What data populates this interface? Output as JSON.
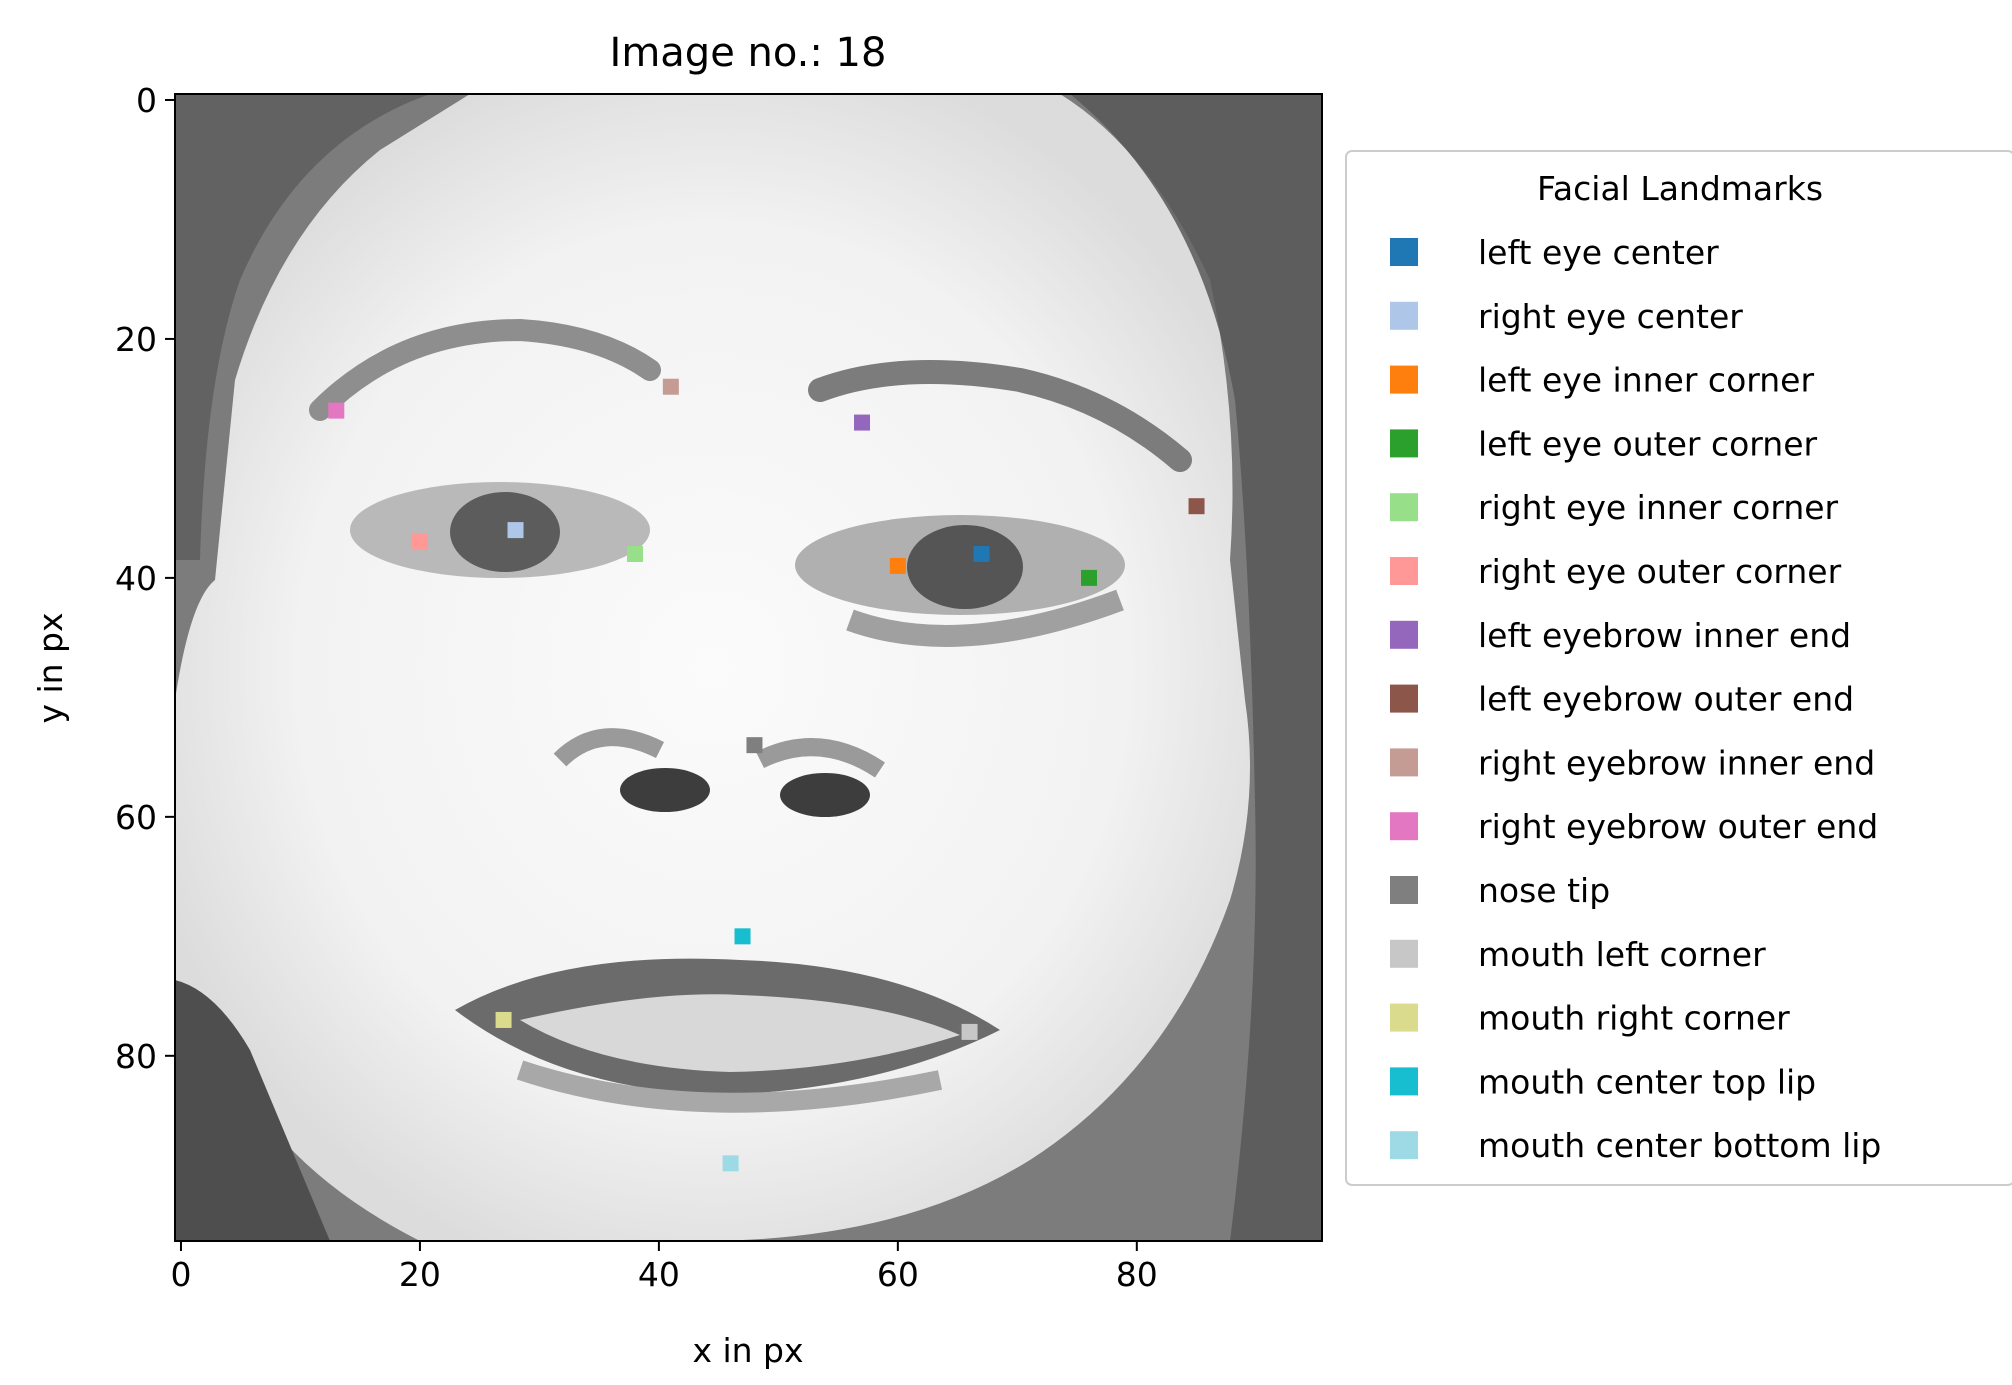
{
  "chart_data": {
    "type": "scatter",
    "title": "Image no.: 18",
    "xlabel": "x in px",
    "ylabel": "y in px",
    "xlim": [
      -0.5,
      95.5
    ],
    "ylim": [
      95.5,
      -0.5
    ],
    "y_axis_inverted": true,
    "background": "grayscale face image (96x96 px)",
    "grid": false,
    "xticks": [
      0,
      20,
      40,
      60,
      80
    ],
    "yticks": [
      0,
      20,
      40,
      60,
      80
    ],
    "legend": {
      "title": "Facial Landmarks",
      "placement": "outside right"
    },
    "series": [
      {
        "name": "left eye center",
        "x": 67,
        "y": 38,
        "color": "#1f77b4"
      },
      {
        "name": "right eye center",
        "x": 28,
        "y": 36,
        "color": "#aec7e8"
      },
      {
        "name": "left eye inner corner",
        "x": 60,
        "y": 39,
        "color": "#ff7f0e"
      },
      {
        "name": "left eye outer corner",
        "x": 76,
        "y": 40,
        "color": "#2ca02c"
      },
      {
        "name": "right eye inner corner",
        "x": 38,
        "y": 38,
        "color": "#98df8a"
      },
      {
        "name": "right eye outer corner",
        "x": 20,
        "y": 37,
        "color": "#ff9896"
      },
      {
        "name": "left eyebrow inner end",
        "x": 57,
        "y": 27,
        "color": "#9467bd"
      },
      {
        "name": "left eyebrow outer end",
        "x": 85,
        "y": 34,
        "color": "#8c564b"
      },
      {
        "name": "right eyebrow inner end",
        "x": 41,
        "y": 24,
        "color": "#c49c94"
      },
      {
        "name": "right eyebrow outer end",
        "x": 13,
        "y": 26,
        "color": "#e377c2"
      },
      {
        "name": "nose tip",
        "x": 48,
        "y": 54,
        "color": "#7f7f7f"
      },
      {
        "name": "mouth left corner",
        "x": 66,
        "y": 78,
        "color": "#c7c7c7"
      },
      {
        "name": "mouth right corner",
        "x": 27,
        "y": 77,
        "color": "#dbdb8d"
      },
      {
        "name": "mouth center top lip",
        "x": 47,
        "y": 70,
        "color": "#17becf"
      },
      {
        "name": "mouth center bottom lip",
        "x": 46,
        "y": 89,
        "color": "#9edae5"
      }
    ]
  }
}
